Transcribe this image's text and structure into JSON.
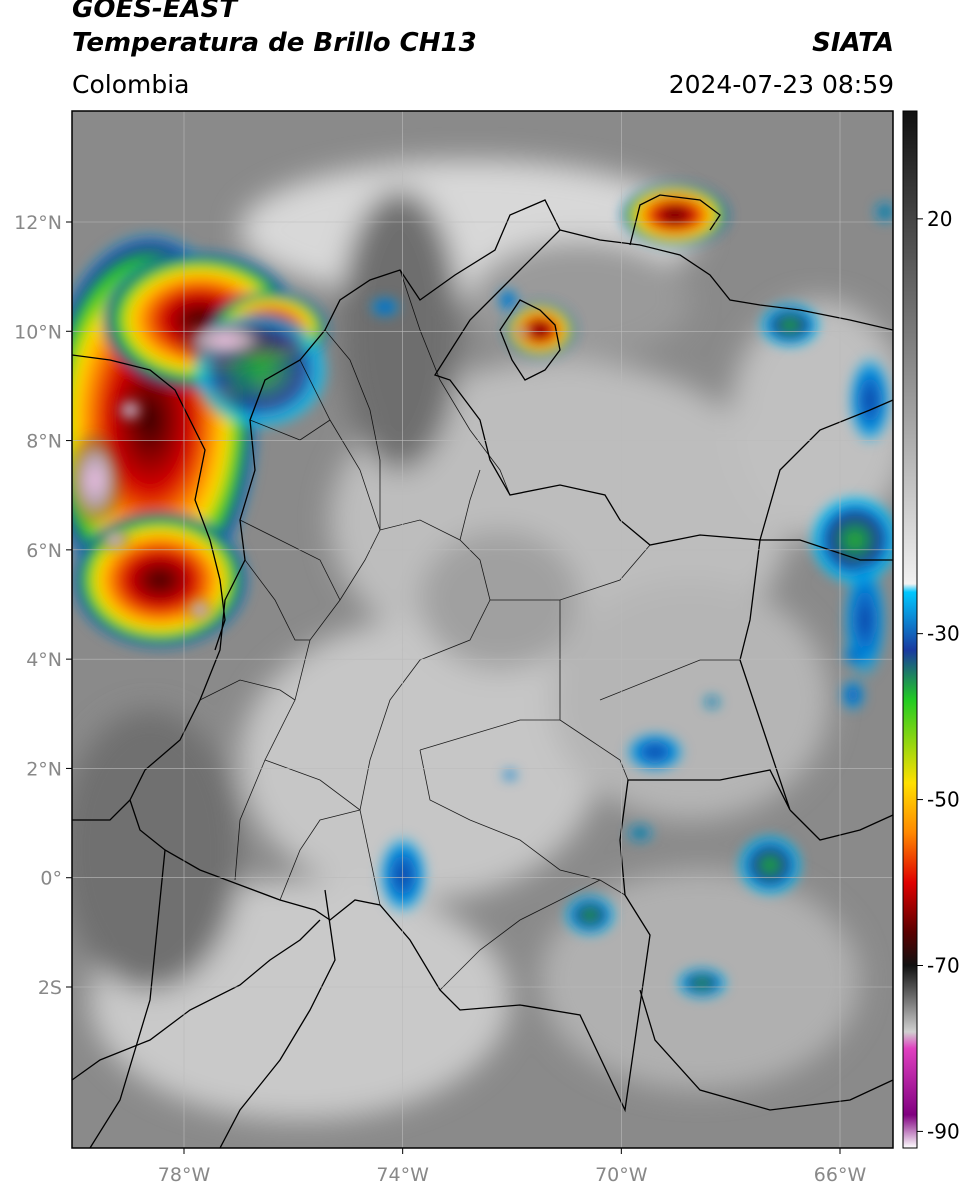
{
  "header": {
    "satellite": "GOES-EAST",
    "product": "Temperatura de Brillo CH13",
    "region": "Colombia",
    "brand": "SIATA",
    "timestamp": "2024-07-23 08:59"
  },
  "map": {
    "lon_range": [
      -80,
      -65
    ],
    "lat_range": [
      -5,
      14
    ],
    "lon_ticks": [
      {
        "value": -78,
        "label": "78°W"
      },
      {
        "value": -74,
        "label": "74°W"
      },
      {
        "value": -70,
        "label": "70°W"
      },
      {
        "value": -66,
        "label": "66°W"
      }
    ],
    "lat_ticks": [
      {
        "value": 12,
        "label": "12°N"
      },
      {
        "value": 10,
        "label": "10°N"
      },
      {
        "value": 8,
        "label": "8°N"
      },
      {
        "value": 6,
        "label": "6°N"
      },
      {
        "value": 4,
        "label": "4°N"
      },
      {
        "value": 2,
        "label": "2°N"
      },
      {
        "value": 0,
        "label": "0°"
      },
      {
        "value": -2,
        "label": "2S"
      }
    ],
    "grid": true,
    "colors": {
      "background_gray": "#8a8a8a",
      "border": "#000000",
      "grid": "#bbbbbb"
    }
  },
  "colorbar": {
    "range": [
      -92,
      33
    ],
    "ticks": [
      {
        "value": 20,
        "label": "20"
      },
      {
        "value": -30,
        "label": "-30"
      },
      {
        "value": -50,
        "label": "-50"
      },
      {
        "value": -70,
        "label": "-70"
      },
      {
        "value": -90,
        "label": "-90"
      }
    ],
    "colors": {
      "warm_top": "#111111",
      "warm_bottom": "#f2f2f2",
      "cyan": "#00c8ff",
      "blue": "#1a3aa0",
      "green": "#22cc22",
      "yellow": "#ffe000",
      "orange": "#ff8800",
      "red": "#e00000",
      "dark_red": "#5a0000",
      "magenta": "#e040c0",
      "purple": "#800080"
    }
  }
}
